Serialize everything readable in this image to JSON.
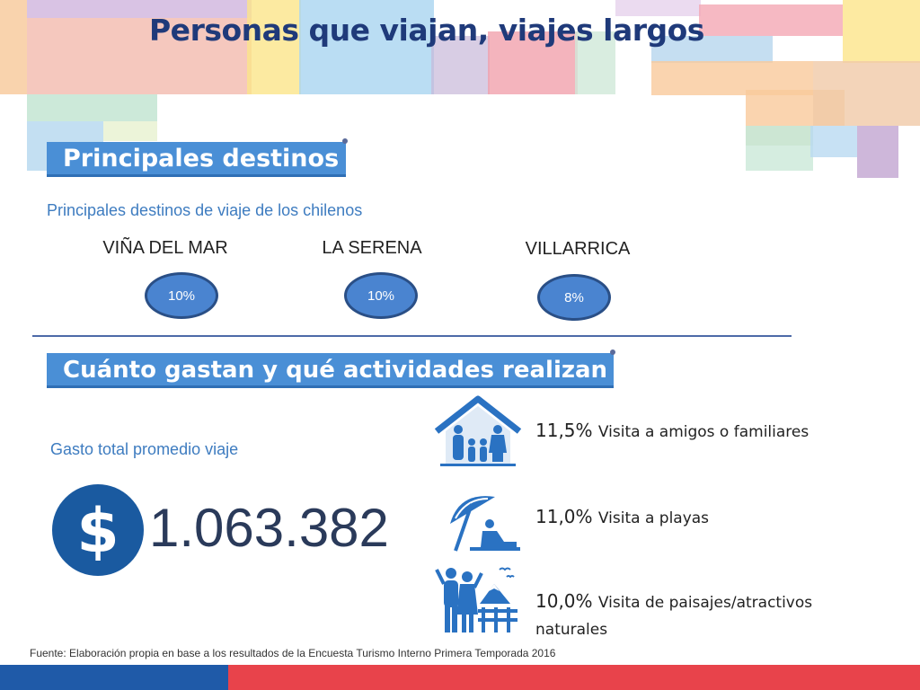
{
  "title": "Personas que viajan, viajes largos",
  "section1": {
    "banner": "Principales destinos",
    "subtitle": "Principales destinos de viaje de los chilenos",
    "destinations": [
      {
        "name": "VIÑA DEL MAR",
        "pct": "10%"
      },
      {
        "name": "LA SERENA",
        "pct": "10%"
      },
      {
        "name": "VILLARRICA",
        "pct": "8%"
      }
    ]
  },
  "section2": {
    "banner": "Cuánto gastan y qué actividades realizan",
    "spend_label": "Gasto total promedio viaje",
    "spend_value": "1.063.382",
    "activities": [
      {
        "pct": "11,5%",
        "desc": "Visita a amigos o familiares",
        "icon": "family-house-icon"
      },
      {
        "pct": "11,0%",
        "desc": "Visita a playas",
        "icon": "beach-umbrella-icon"
      },
      {
        "pct": "10,0%",
        "desc": "Visita de paisajes/atractivos naturales",
        "icon": "scenery-couple-icon"
      }
    ]
  },
  "source": "Fuente: Elaboración propia en base a los resultados de la Encuesta Turismo Interno Primera Temporada 2016",
  "colors": {
    "accent": "#4a8fd6",
    "title": "#1f3a7a",
    "footer_blue": "#1f5aa8",
    "footer_red": "#e8434b"
  }
}
